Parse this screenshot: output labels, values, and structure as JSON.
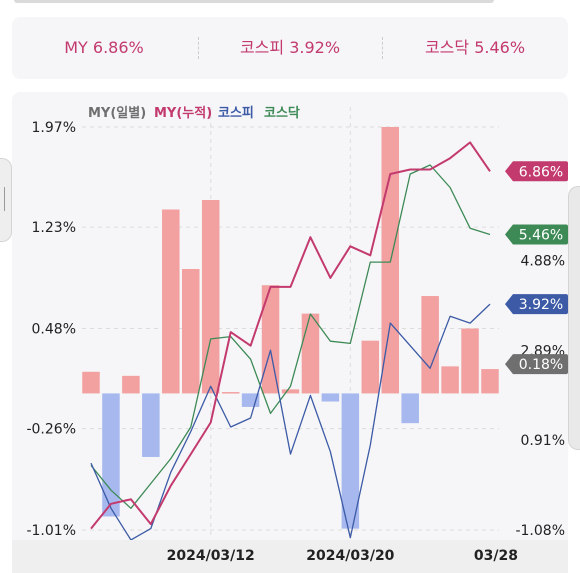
{
  "summary": {
    "my": "MY 6.86%",
    "kospi": "코스피 3.92%",
    "kosdaq": "코스닥 5.46%"
  },
  "colors": {
    "my": "#c33a6e",
    "kospi": "#3c5aa6",
    "kosdaq": "#3d8a56",
    "daily_up": "#f2a0a0",
    "daily_down": "#a6b8ee",
    "daily_label": "#6f6f6f"
  },
  "chart_data": {
    "type": "bar",
    "legend": [
      "MY(일별)",
      "MY(누적)",
      "코스피",
      "코스닥"
    ],
    "legend_placement": "top-left",
    "x_tick_labels": [
      "2024/03/12",
      "2024/03/20",
      "03/28"
    ],
    "y_left_ticks": [
      "1.97%",
      "1.23%",
      "0.48%",
      "-0.26%",
      "-1.01%"
    ],
    "y_left_range": [
      -1.01,
      1.97
    ],
    "y_right_ticks": [
      "4.88%",
      "2.89%",
      "0.91%",
      "-1.08%"
    ],
    "y_right_range": [
      -1.08,
      7.84
    ],
    "grid": true,
    "series": [
      {
        "name": "MY(일별)",
        "type": "bar",
        "axis": "left",
        "values": [
          0.16,
          -0.91,
          0.13,
          -0.47,
          1.36,
          0.92,
          1.43,
          0.01,
          -0.1,
          0.8,
          0.03,
          0.59,
          -0.06,
          -1.0,
          0.39,
          1.97,
          -0.22,
          0.72,
          0.2,
          0.48,
          0.18
        ]
      },
      {
        "name": "MY(누적)",
        "type": "line",
        "axis": "right",
        "values": [
          -1.05,
          -0.5,
          -0.4,
          -0.95,
          -0.1,
          0.6,
          1.3,
          3.3,
          3.0,
          4.3,
          4.3,
          5.4,
          4.5,
          5.2,
          5.0,
          6.8,
          6.9,
          6.9,
          7.15,
          7.5,
          6.86
        ]
      },
      {
        "name": "코스피",
        "type": "line",
        "axis": "right",
        "values": [
          0.4,
          -0.6,
          -1.3,
          -1.05,
          0.2,
          1.1,
          2.1,
          1.2,
          1.4,
          2.9,
          0.6,
          1.9,
          0.65,
          -1.25,
          0.8,
          3.5,
          3.0,
          2.5,
          3.65,
          3.5,
          3.92
        ]
      },
      {
        "name": "코스닥",
        "type": "line",
        "axis": "right",
        "values": [
          0.35,
          -0.2,
          -0.6,
          -0.05,
          0.5,
          1.2,
          3.15,
          3.2,
          2.7,
          1.5,
          2.1,
          3.7,
          3.1,
          3.05,
          4.85,
          4.85,
          6.8,
          7.0,
          6.5,
          5.6,
          5.46
        ]
      }
    ],
    "end_labels": [
      {
        "series": "MY(누적)",
        "text": "6.86%"
      },
      {
        "series": "코스닥",
        "text": "5.46%"
      },
      {
        "series": "코스피",
        "text": "3.92%"
      },
      {
        "series": "MY(일별)",
        "text": "0.18%"
      }
    ]
  }
}
